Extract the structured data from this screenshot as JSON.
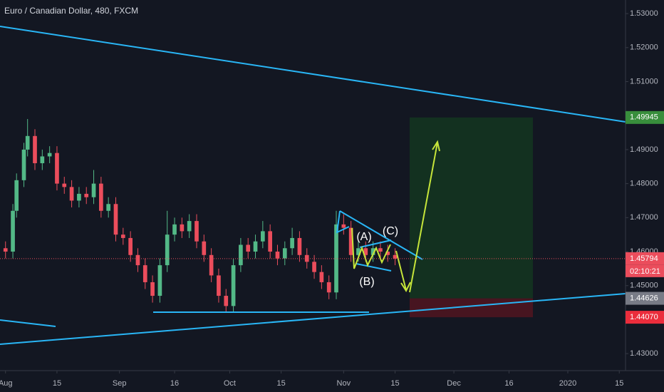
{
  "chart_data": {
    "type": "candlestick",
    "title": "Euro / Canadian Dollar, 480, FXCM",
    "x": [
      0,
      2,
      3,
      5,
      6,
      8,
      10,
      12,
      14,
      16,
      18,
      20,
      22,
      24,
      26,
      28,
      30,
      32,
      34,
      36,
      38,
      40,
      42,
      44,
      46,
      48,
      50,
      52,
      54,
      56,
      58,
      60,
      62,
      64,
      66,
      68,
      70,
      72,
      74,
      76,
      78,
      80,
      82,
      84,
      86,
      88,
      90,
      92,
      94,
      96,
      98,
      100,
      102,
      104,
      106
    ],
    "open": [
      1.461,
      1.46,
      1.472,
      1.481,
      1.49,
      1.494,
      1.486,
      1.488,
      1.489,
      1.48,
      1.479,
      1.475,
      1.477,
      1.476,
      1.48,
      1.472,
      1.474,
      1.465,
      1.464,
      1.459,
      1.456,
      1.451,
      1.447,
      1.456,
      1.465,
      1.468,
      1.466,
      1.469,
      1.463,
      1.459,
      1.453,
      1.447,
      1.444,
      1.456,
      1.462,
      1.46,
      1.463,
      1.466,
      1.46,
      1.458,
      1.461,
      1.464,
      1.459,
      1.457,
      1.454,
      1.451,
      1.448,
      1.468,
      1.467,
      1.459,
      1.461,
      1.459,
      1.461,
      1.46,
      1.459
    ],
    "high": [
      1.463,
      1.474,
      1.483,
      1.492,
      1.499,
      1.496,
      1.49,
      1.491,
      1.491,
      1.482,
      1.481,
      1.479,
      1.479,
      1.484,
      1.482,
      1.476,
      1.476,
      1.467,
      1.466,
      1.461,
      1.458,
      1.453,
      1.458,
      1.472,
      1.47,
      1.47,
      1.471,
      1.471,
      1.465,
      1.461,
      1.455,
      1.449,
      1.458,
      1.464,
      1.464,
      1.465,
      1.469,
      1.468,
      1.462,
      1.463,
      1.467,
      1.466,
      1.461,
      1.459,
      1.456,
      1.453,
      1.472,
      1.471,
      1.469,
      1.463,
      1.463,
      1.463,
      1.463,
      1.462,
      1.461
    ],
    "low": [
      1.458,
      1.458,
      1.47,
      1.479,
      1.488,
      1.484,
      1.484,
      1.486,
      1.478,
      1.477,
      1.473,
      1.473,
      1.474,
      1.474,
      1.47,
      1.47,
      1.463,
      1.462,
      1.457,
      1.454,
      1.449,
      1.445,
      1.445,
      1.454,
      1.463,
      1.464,
      1.464,
      1.461,
      1.457,
      1.451,
      1.445,
      1.442,
      1.442,
      1.454,
      1.458,
      1.458,
      1.461,
      1.458,
      1.456,
      1.456,
      1.459,
      1.457,
      1.455,
      1.452,
      1.449,
      1.446,
      1.446,
      1.465,
      1.457,
      1.457,
      1.457,
      1.457,
      1.458,
      1.457,
      1.456
    ],
    "close": [
      1.46,
      1.472,
      1.481,
      1.49,
      1.494,
      1.486,
      1.488,
      1.489,
      1.48,
      1.479,
      1.475,
      1.477,
      1.476,
      1.48,
      1.472,
      1.474,
      1.465,
      1.464,
      1.459,
      1.456,
      1.451,
      1.447,
      1.456,
      1.465,
      1.468,
      1.466,
      1.469,
      1.463,
      1.459,
      1.453,
      1.447,
      1.444,
      1.456,
      1.462,
      1.46,
      1.463,
      1.466,
      1.46,
      1.458,
      1.461,
      1.464,
      1.459,
      1.457,
      1.454,
      1.451,
      1.448,
      1.468,
      1.467,
      1.459,
      1.461,
      1.459,
      1.461,
      1.46,
      1.459,
      1.45794
    ],
    "up_color": "#53b987",
    "down_color": "#eb4d5c",
    "xlim": [
      -1.5,
      168.7
    ],
    "xticks": [
      {
        "value": 0,
        "label": "Aug"
      },
      {
        "value": 14,
        "label": "15"
      },
      {
        "value": 31,
        "label": "Sep"
      },
      {
        "value": 46,
        "label": "16"
      },
      {
        "value": 61,
        "label": "Oct"
      },
      {
        "value": 75,
        "label": "15"
      },
      {
        "value": 92,
        "label": "Nov"
      },
      {
        "value": 106,
        "label": "15"
      },
      {
        "value": 122,
        "label": "Dec"
      },
      {
        "value": 137,
        "label": "16"
      },
      {
        "value": 153,
        "label": "2020"
      },
      {
        "value": 167,
        "label": "15"
      }
    ],
    "ylim": [
      1.425,
      1.534
    ],
    "yticks": [
      {
        "value": 1.43,
        "label": "1.43000"
      },
      {
        "value": 1.45,
        "label": "1.45000"
      },
      {
        "value": 1.46,
        "label": "1.46000"
      },
      {
        "value": 1.47,
        "label": "1.47000"
      },
      {
        "value": 1.48,
        "label": "1.48000"
      },
      {
        "value": 1.49,
        "label": "1.49000"
      },
      {
        "value": 1.51,
        "label": "1.51000"
      },
      {
        "value": 1.52,
        "label": "1.52000"
      },
      {
        "value": 1.53,
        "label": "1.53000"
      }
    ],
    "target": 1.49945,
    "current_price": 1.45794,
    "entry": 1.44626,
    "stop": {
      "value": 1.4407,
      "label": "1.44070"
    },
    "countdown": "02:10:21",
    "annotations": [
      "(A)",
      "(B)",
      "(C)"
    ]
  }
}
